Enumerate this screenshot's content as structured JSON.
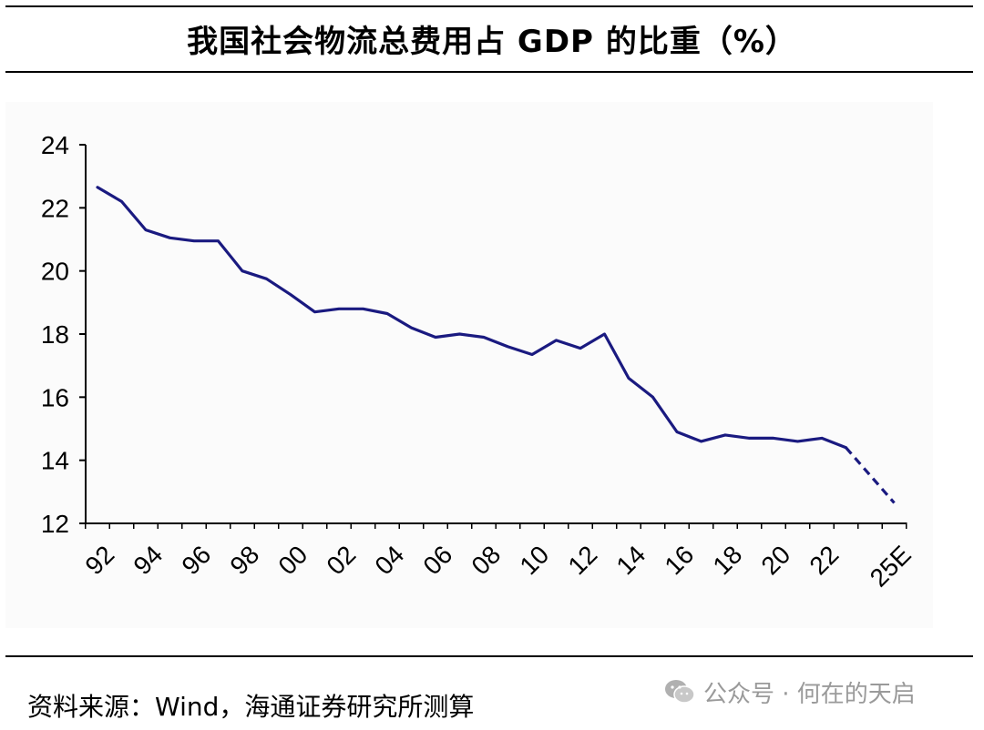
{
  "title": "我国社会物流总费用占 GDP 的比重（%）",
  "source": "资料来源：Wind，海通证券研究所测算",
  "watermark": "公众号 · 何在的天启",
  "colors": {
    "line": "#1a1a80",
    "axis": "#000000",
    "watermark": "#9a9a9a"
  },
  "chart_data": {
    "type": "line",
    "title": "我国社会物流总费用占 GDP 的比重（%）",
    "xlabel": "",
    "ylabel": "",
    "ylim": [
      12,
      24
    ],
    "yticks": [
      12,
      14,
      16,
      18,
      20,
      22,
      24
    ],
    "xtick_labels": [
      "92",
      "94",
      "96",
      "98",
      "00",
      "02",
      "04",
      "06",
      "08",
      "10",
      "12",
      "14",
      "16",
      "18",
      "20",
      "22",
      "25E"
    ],
    "x": [
      "1992",
      "1993",
      "1994",
      "1995",
      "1996",
      "1997",
      "1998",
      "1999",
      "2000",
      "2001",
      "2002",
      "2003",
      "2004",
      "2005",
      "2006",
      "2007",
      "2008",
      "2009",
      "2010",
      "2011",
      "2012",
      "2013",
      "2014",
      "2015",
      "2016",
      "2017",
      "2018",
      "2019",
      "2020",
      "2021",
      "2022",
      "2023",
      "2025E"
    ],
    "series": [
      {
        "name": "",
        "values": [
          22.65,
          22.2,
          21.3,
          21.05,
          20.95,
          20.95,
          20.0,
          19.75,
          19.25,
          18.7,
          18.8,
          18.8,
          18.65,
          18.2,
          17.9,
          18.0,
          17.9,
          17.6,
          17.35,
          17.8,
          17.55,
          18.0,
          16.6,
          16.0,
          14.9,
          14.6,
          14.8,
          14.7,
          14.7,
          14.6,
          14.7,
          14.4,
          12.65
        ],
        "forecast_from_index": 31
      }
    ],
    "grid": false,
    "legend": "none"
  }
}
